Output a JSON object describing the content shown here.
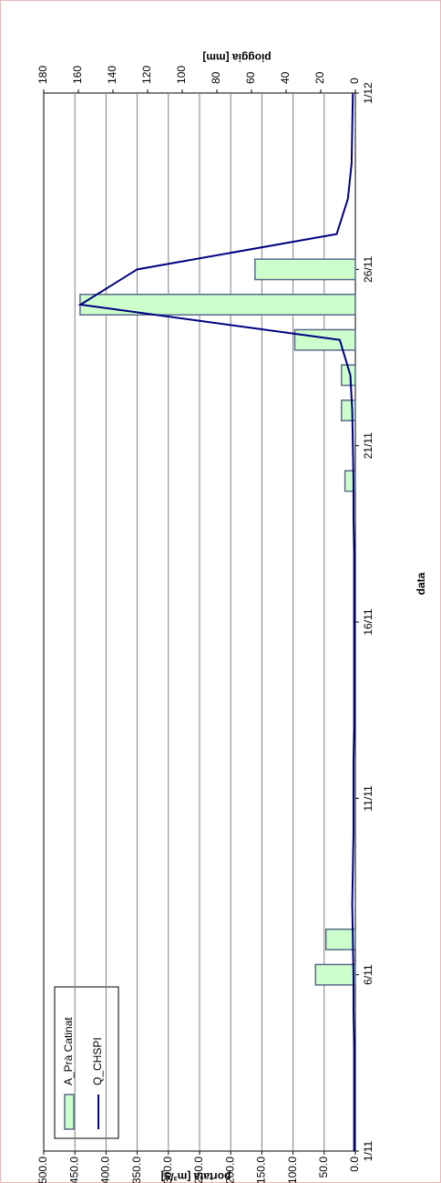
{
  "chart_data": {
    "type": "bar-line",
    "x_label": "data",
    "y_label": "portata [m³/s]",
    "y2_label": "pioggia [mm]",
    "categories": [
      "1/11",
      null,
      null,
      null,
      null,
      "6/11",
      null,
      null,
      null,
      null,
      "11/11",
      null,
      null,
      null,
      null,
      "16/11",
      null,
      null,
      null,
      null,
      "21/11",
      null,
      null,
      null,
      null,
      "26/11",
      null,
      null,
      null,
      null,
      "1/12"
    ],
    "series": [
      {
        "name": "A_Prà Catinat",
        "type": "bar",
        "axis": "y2",
        "color": "#ccffcc",
        "values": [
          0,
          0,
          0,
          0,
          0,
          23,
          17,
          0,
          0,
          0,
          0,
          0,
          0,
          0,
          0,
          0,
          0,
          0,
          0,
          6,
          0,
          8,
          8,
          35,
          159,
          58,
          0,
          0,
          0,
          0,
          0
        ]
      },
      {
        "name": "Q_CHSPI",
        "type": "line",
        "color": "#000080",
        "values": [
          2,
          2,
          2,
          2,
          3,
          3,
          4,
          5,
          4,
          3,
          3,
          3,
          2,
          2,
          2,
          2,
          2,
          2,
          3,
          3,
          4,
          5,
          8,
          25,
          441,
          350,
          30,
          12,
          6,
          5,
          4
        ]
      }
    ],
    "ylim": [
      0,
      500
    ],
    "yticks": [
      {
        "value": 0,
        "label": "0.0"
      },
      {
        "value": 50,
        "label": "50.0"
      },
      {
        "value": 100,
        "label": "100.0"
      },
      {
        "value": 150,
        "label": "150.0"
      },
      {
        "value": 200,
        "label": "200.0"
      },
      {
        "value": 250,
        "label": "250.0"
      },
      {
        "value": 300,
        "label": "300.0"
      },
      {
        "value": 350,
        "label": "350.0"
      },
      {
        "value": 400,
        "label": "400.0"
      },
      {
        "value": 450,
        "label": "450.0"
      },
      {
        "value": 500,
        "label": "500.0"
      }
    ],
    "y2lim": [
      0,
      180
    ],
    "y2ticks": [
      0,
      20,
      40,
      60,
      80,
      100,
      120,
      140,
      160,
      180
    ],
    "grid": true
  }
}
